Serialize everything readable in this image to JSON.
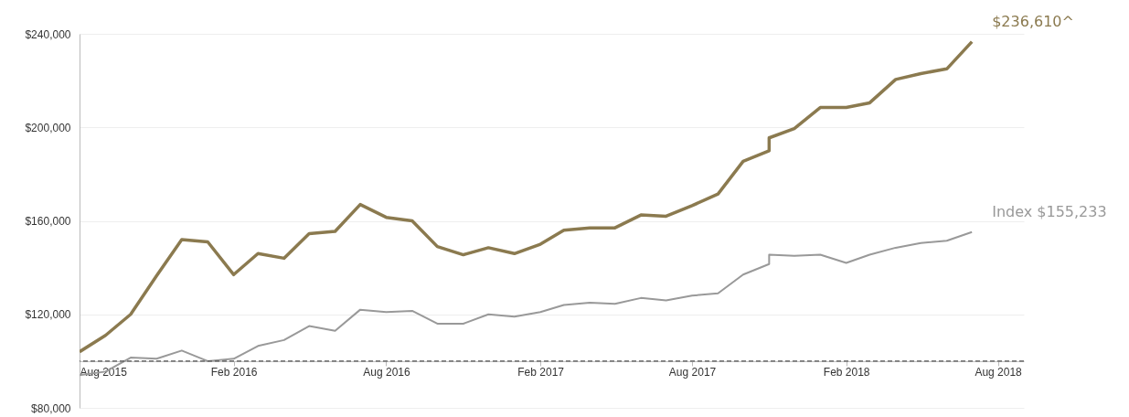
{
  "chart_data": {
    "type": "line",
    "x": [
      "2015-08",
      "2015-09",
      "2015-10",
      "2015-11",
      "2015-12",
      "2016-01",
      "2016-02",
      "2016-03",
      "2016-04",
      "2016-05",
      "2016-06",
      "2016-07",
      "2016-08",
      "2016-09",
      "2016-10",
      "2016-11",
      "2016-12",
      "2017-01",
      "2017-02",
      "2017-03",
      "2017-04",
      "2017-05",
      "2017-06",
      "2017-07",
      "2017-08",
      "2017-09",
      "2017-10",
      "2017-11",
      "2017-11",
      "2017-12",
      "2018-01",
      "2018-02",
      "2018-03",
      "2018-04",
      "2018-05",
      "2018-06",
      "2018-07"
    ],
    "series": [
      {
        "color": "#8b7a4f",
        "values": [
          104000,
          111000,
          120000,
          136500,
          152000,
          151000,
          137000,
          146000,
          144000,
          154500,
          155500,
          167000,
          161500,
          160000,
          149000,
          145500,
          148500,
          146000,
          150000,
          156000,
          157000,
          157000,
          162500,
          162000,
          166500,
          171500,
          185500,
          190000,
          195500,
          199500,
          208500,
          208500,
          210500,
          220500,
          223000,
          225000,
          236610
        ]
      },
      {
        "color": "#999999",
        "values": [
          94000,
          95500,
          101500,
          101000,
          104500,
          100000,
          101000,
          106500,
          109000,
          115000,
          113000,
          122000,
          121000,
          121500,
          116000,
          116000,
          120000,
          119000,
          121000,
          124000,
          125000,
          124500,
          127000,
          126000,
          128000,
          129000,
          137000,
          141500,
          145500,
          145000,
          145500,
          142000,
          145500,
          148500,
          150500,
          151500,
          155233
        ]
      }
    ],
    "annotations": [
      {
        "text": "$236,610^",
        "x": "2018-07",
        "y": 236610
      },
      {
        "text": "Index $155,233",
        "x": "2018-07",
        "y": 155233
      }
    ],
    "xlim": [
      "2015-08",
      "2018-09"
    ],
    "xticks": [
      {
        "value": "2015-08",
        "label": "Aug 2015"
      },
      {
        "value": "2016-02",
        "label": "Feb 2016"
      },
      {
        "value": "2016-08",
        "label": "Aug 2016"
      },
      {
        "value": "2017-02",
        "label": "Feb 2017"
      },
      {
        "value": "2017-08",
        "label": "Aug 2017"
      },
      {
        "value": "2018-02",
        "label": "Feb 2018"
      },
      {
        "value": "2018-08",
        "label": "Aug 2018"
      }
    ],
    "ylim": [
      80000,
      240000
    ],
    "yticks": [
      {
        "value": 80000,
        "label": "$80,000"
      },
      {
        "value": 120000,
        "label": "$120,000"
      },
      {
        "value": 160000,
        "label": "$160,000"
      },
      {
        "value": 200000,
        "label": "$200,000"
      },
      {
        "value": 240000,
        "label": "$240,000"
      }
    ],
    "ref_lines": [
      {
        "axis": "y",
        "value": 100000,
        "color": "#555555",
        "line_style": "dashed"
      }
    ],
    "grid": "y",
    "line_style": "solid"
  }
}
